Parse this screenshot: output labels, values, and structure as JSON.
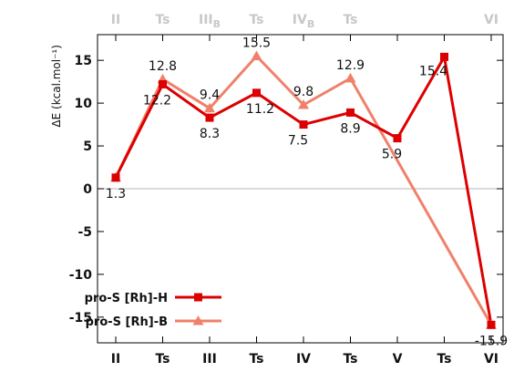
{
  "chart_data": {
    "type": "line",
    "ylabel": "ΔE (kcal.mol⁻¹)",
    "ylim": [
      -18,
      18
    ],
    "yticks": [
      15,
      10,
      5,
      0,
      -5,
      -10,
      -15
    ],
    "categories": [
      "II",
      "Ts",
      "III",
      "Ts",
      "IV",
      "Ts",
      "V",
      "Ts",
      "VI"
    ],
    "top_categories": [
      {
        "base": "II",
        "sub": ""
      },
      {
        "base": "Ts",
        "sub": ""
      },
      {
        "base": "III",
        "sub": "B"
      },
      {
        "base": "Ts",
        "sub": ""
      },
      {
        "base": "IV",
        "sub": "B"
      },
      {
        "base": "Ts",
        "sub": ""
      },
      {
        "base": "",
        "sub": ""
      },
      {
        "base": "",
        "sub": ""
      },
      {
        "base": "VI",
        "sub": ""
      }
    ],
    "grid": "zero line only",
    "legend_position": "bottom-left",
    "series": [
      {
        "name": "pro-S [Rh]-H",
        "color": "#dd0000",
        "marker": "square",
        "x": [
          0,
          1,
          2,
          3,
          4,
          5,
          6,
          7,
          8
        ],
        "values": [
          1.3,
          12.2,
          8.3,
          11.2,
          7.5,
          8.9,
          5.9,
          15.4,
          -15.9
        ],
        "labels": [
          "1.3",
          "12.2",
          "8.3",
          "11.2",
          "7.5",
          "8.9",
          "5.9",
          "15.4",
          "-15.9"
        ]
      },
      {
        "name": "pro-S [Rh]-B",
        "color": "#f0806a",
        "marker": "triangle",
        "x": [
          0,
          1,
          2,
          3,
          4,
          5,
          8
        ],
        "values": [
          1.3,
          12.8,
          9.4,
          15.5,
          9.8,
          12.9,
          -15.9
        ],
        "labels": [
          "",
          "12.8",
          "9.4",
          "15.5",
          "9.8",
          "12.9",
          ""
        ]
      }
    ]
  }
}
